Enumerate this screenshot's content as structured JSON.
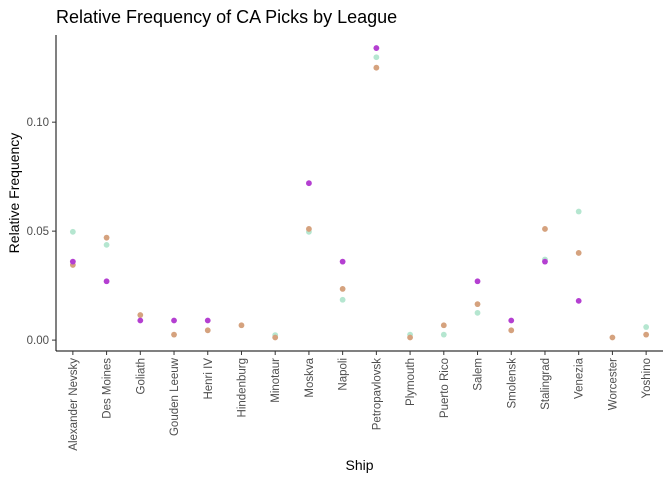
{
  "chart_data": {
    "type": "scatter",
    "title": "Relative Frequency of CA Picks by League",
    "xlabel": "Ship",
    "ylabel": "Relative Frequency",
    "categories": [
      "Alexander Nevsky",
      "Des Moines",
      "Goliath",
      "Gouden Leeuw",
      "Henri IV",
      "Hindenburg",
      "Minotaur",
      "Moskva",
      "Napoli",
      "Petropavlovsk",
      "Plymouth",
      "Puerto Rico",
      "Salem",
      "Smolensk",
      "Stalingrad",
      "Venezia",
      "Worcester",
      "Yoshino"
    ],
    "ylim": [
      -0.005,
      0.14
    ],
    "yticks": [
      0.0,
      0.05,
      0.1
    ],
    "ytick_labels": [
      "0.00",
      "0.05",
      "0.10"
    ],
    "grid": false,
    "legend": "none",
    "series": [
      {
        "color": "#b5e6d0",
        "values": [
          0.0497,
          0.0437,
          null,
          null,
          null,
          null,
          0.0023,
          0.0497,
          0.0185,
          0.1298,
          0.0025,
          0.0025,
          0.0125,
          null,
          0.037,
          0.059,
          null,
          0.006
        ]
      },
      {
        "color": "#d5a27e",
        "values": [
          0.0345,
          0.047,
          0.0115,
          0.0025,
          0.0045,
          0.0068,
          0.0012,
          0.051,
          0.0235,
          0.125,
          0.0012,
          0.0068,
          0.0165,
          0.0045,
          0.051,
          0.04,
          0.0012,
          0.0025
        ]
      },
      {
        "color": "#b43fd1",
        "values": [
          0.036,
          0.027,
          0.009,
          0.009,
          0.009,
          null,
          null,
          0.072,
          0.036,
          0.134,
          null,
          null,
          0.027,
          0.009,
          0.036,
          0.018,
          null,
          null
        ]
      }
    ]
  }
}
